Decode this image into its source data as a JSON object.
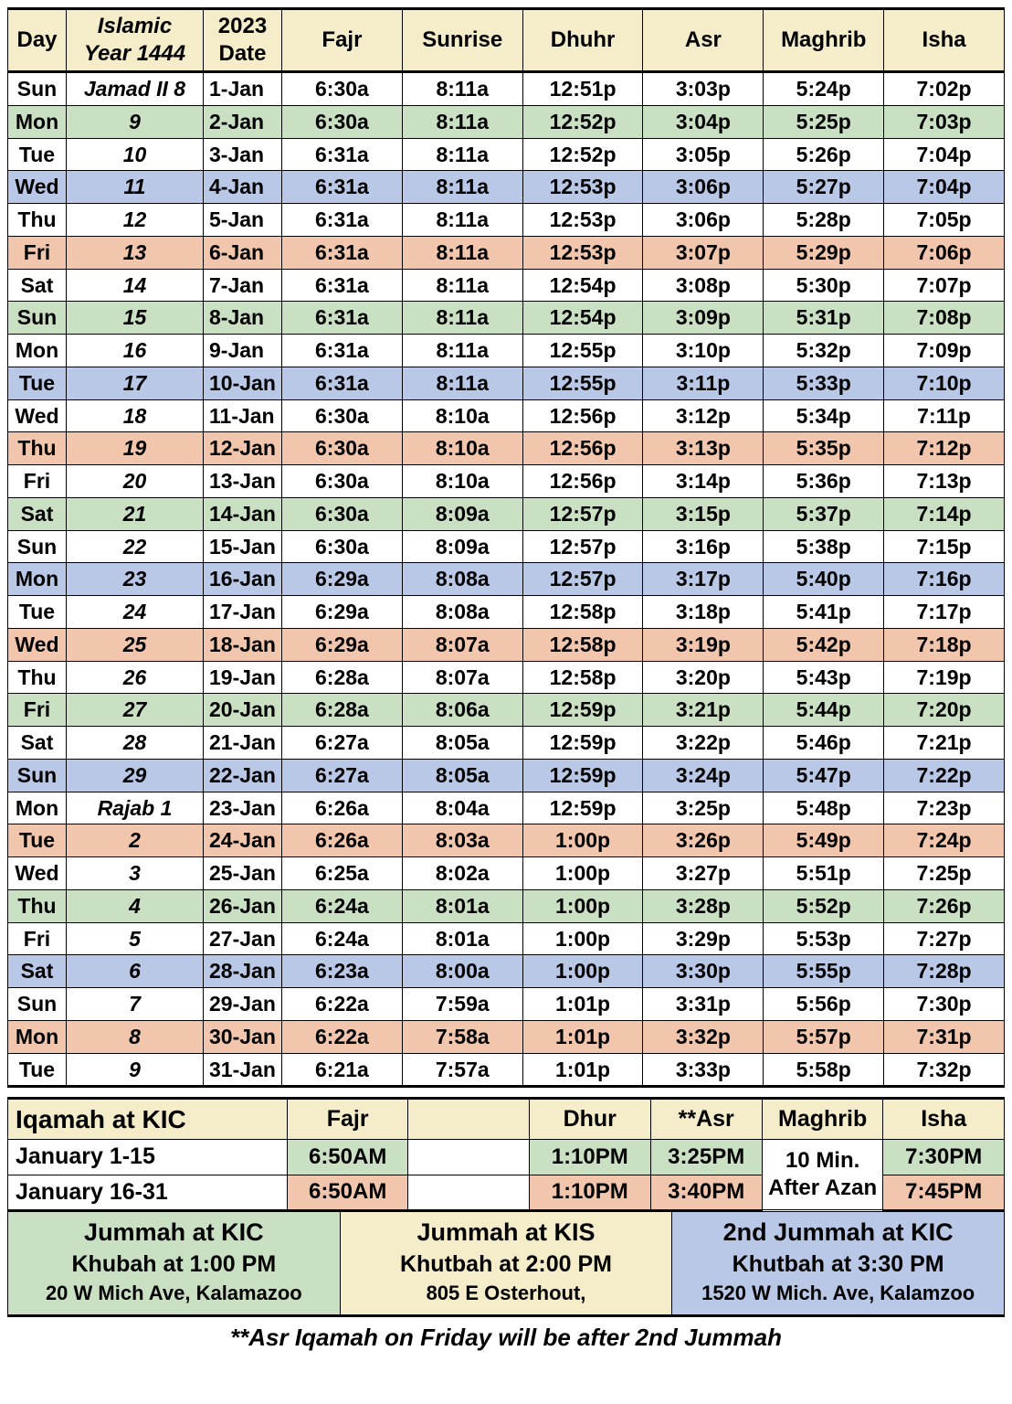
{
  "colors": {
    "header_bg": "#f5ecc9",
    "row_white": "#ffffff",
    "row_green": "#c9e0c3",
    "row_blue": "#b8c8e6",
    "row_peach": "#f2c6ad",
    "border": "#000000"
  },
  "header": {
    "day": "Day",
    "islamic_line1": "Islamic",
    "islamic_line2": "Year 1444",
    "date_line1": "2023",
    "date_line2": "Date",
    "fajr": "Fajr",
    "sunrise": "Sunrise",
    "dhuhr": "Dhuhr",
    "asr": "Asr",
    "maghrib": "Maghrib",
    "isha": "Isha"
  },
  "rows": [
    {
      "rc": "white",
      "day": "Sun",
      "islamic": "Jamad II  8",
      "date": "1-Jan",
      "fajr": "6:30a",
      "sunrise": "8:11a",
      "dhuhr": "12:51p",
      "asr": "3:03p",
      "maghrib": "5:24p",
      "isha": "7:02p"
    },
    {
      "rc": "green",
      "day": "Mon",
      "islamic": "9",
      "date": "2-Jan",
      "fajr": "6:30a",
      "sunrise": "8:11a",
      "dhuhr": "12:52p",
      "asr": "3:04p",
      "maghrib": "5:25p",
      "isha": "7:03p"
    },
    {
      "rc": "white",
      "day": "Tue",
      "islamic": "10",
      "date": "3-Jan",
      "fajr": "6:31a",
      "sunrise": "8:11a",
      "dhuhr": "12:52p",
      "asr": "3:05p",
      "maghrib": "5:26p",
      "isha": "7:04p"
    },
    {
      "rc": "blue",
      "day": "Wed",
      "islamic": "11",
      "date": "4-Jan",
      "fajr": "6:31a",
      "sunrise": "8:11a",
      "dhuhr": "12:53p",
      "asr": "3:06p",
      "maghrib": "5:27p",
      "isha": "7:04p"
    },
    {
      "rc": "white",
      "day": "Thu",
      "islamic": "12",
      "date": "5-Jan",
      "fajr": "6:31a",
      "sunrise": "8:11a",
      "dhuhr": "12:53p",
      "asr": "3:06p",
      "maghrib": "5:28p",
      "isha": "7:05p"
    },
    {
      "rc": "peach",
      "day": "Fri",
      "islamic": "13",
      "date": "6-Jan",
      "fajr": "6:31a",
      "sunrise": "8:11a",
      "dhuhr": "12:53p",
      "asr": "3:07p",
      "maghrib": "5:29p",
      "isha": "7:06p"
    },
    {
      "rc": "white",
      "day": "Sat",
      "islamic": "14",
      "date": "7-Jan",
      "fajr": "6:31a",
      "sunrise": "8:11a",
      "dhuhr": "12:54p",
      "asr": "3:08p",
      "maghrib": "5:30p",
      "isha": "7:07p"
    },
    {
      "rc": "green",
      "day": "Sun",
      "islamic": "15",
      "date": "8-Jan",
      "fajr": "6:31a",
      "sunrise": "8:11a",
      "dhuhr": "12:54p",
      "asr": "3:09p",
      "maghrib": "5:31p",
      "isha": "7:08p"
    },
    {
      "rc": "white",
      "day": "Mon",
      "islamic": "16",
      "date": "9-Jan",
      "fajr": "6:31a",
      "sunrise": "8:11a",
      "dhuhr": "12:55p",
      "asr": "3:10p",
      "maghrib": "5:32p",
      "isha": "7:09p"
    },
    {
      "rc": "blue",
      "day": "Tue",
      "islamic": "17",
      "date": "10-Jan",
      "fajr": "6:31a",
      "sunrise": "8:11a",
      "dhuhr": "12:55p",
      "asr": "3:11p",
      "maghrib": "5:33p",
      "isha": "7:10p"
    },
    {
      "rc": "white",
      "day": "Wed",
      "islamic": "18",
      "date": "11-Jan",
      "fajr": "6:30a",
      "sunrise": "8:10a",
      "dhuhr": "12:56p",
      "asr": "3:12p",
      "maghrib": "5:34p",
      "isha": "7:11p"
    },
    {
      "rc": "peach",
      "day": "Thu",
      "islamic": "19",
      "date": "12-Jan",
      "fajr": "6:30a",
      "sunrise": "8:10a",
      "dhuhr": "12:56p",
      "asr": "3:13p",
      "maghrib": "5:35p",
      "isha": "7:12p"
    },
    {
      "rc": "white",
      "day": "Fri",
      "islamic": "20",
      "date": "13-Jan",
      "fajr": "6:30a",
      "sunrise": "8:10a",
      "dhuhr": "12:56p",
      "asr": "3:14p",
      "maghrib": "5:36p",
      "isha": "7:13p"
    },
    {
      "rc": "green",
      "day": "Sat",
      "islamic": "21",
      "date": "14-Jan",
      "fajr": "6:30a",
      "sunrise": "8:09a",
      "dhuhr": "12:57p",
      "asr": "3:15p",
      "maghrib": "5:37p",
      "isha": "7:14p"
    },
    {
      "rc": "white",
      "day": "Sun",
      "islamic": "22",
      "date": "15-Jan",
      "fajr": "6:30a",
      "sunrise": "8:09a",
      "dhuhr": "12:57p",
      "asr": "3:16p",
      "maghrib": "5:38p",
      "isha": "7:15p"
    },
    {
      "rc": "blue",
      "day": "Mon",
      "islamic": "23",
      "date": "16-Jan",
      "fajr": "6:29a",
      "sunrise": "8:08a",
      "dhuhr": "12:57p",
      "asr": "3:17p",
      "maghrib": "5:40p",
      "isha": "7:16p"
    },
    {
      "rc": "white",
      "day": "Tue",
      "islamic": "24",
      "date": "17-Jan",
      "fajr": "6:29a",
      "sunrise": "8:08a",
      "dhuhr": "12:58p",
      "asr": "3:18p",
      "maghrib": "5:41p",
      "isha": "7:17p"
    },
    {
      "rc": "peach",
      "day": "Wed",
      "islamic": "25",
      "date": "18-Jan",
      "fajr": "6:29a",
      "sunrise": "8:07a",
      "dhuhr": "12:58p",
      "asr": "3:19p",
      "maghrib": "5:42p",
      "isha": "7:18p"
    },
    {
      "rc": "white",
      "day": "Thu",
      "islamic": "26",
      "date": "19-Jan",
      "fajr": "6:28a",
      "sunrise": "8:07a",
      "dhuhr": "12:58p",
      "asr": "3:20p",
      "maghrib": "5:43p",
      "isha": "7:19p"
    },
    {
      "rc": "green",
      "day": "Fri",
      "islamic": "27",
      "date": "20-Jan",
      "fajr": "6:28a",
      "sunrise": "8:06a",
      "dhuhr": "12:59p",
      "asr": "3:21p",
      "maghrib": "5:44p",
      "isha": "7:20p"
    },
    {
      "rc": "white",
      "day": "Sat",
      "islamic": "28",
      "date": "21-Jan",
      "fajr": "6:27a",
      "sunrise": "8:05a",
      "dhuhr": "12:59p",
      "asr": "3:22p",
      "maghrib": "5:46p",
      "isha": "7:21p"
    },
    {
      "rc": "blue",
      "day": "Sun",
      "islamic": "29",
      "date": "22-Jan",
      "fajr": "6:27a",
      "sunrise": "8:05a",
      "dhuhr": "12:59p",
      "asr": "3:24p",
      "maghrib": "5:47p",
      "isha": "7:22p"
    },
    {
      "rc": "white",
      "day": "Mon",
      "islamic": "Rajab 1",
      "date": "23-Jan",
      "fajr": "6:26a",
      "sunrise": "8:04a",
      "dhuhr": "12:59p",
      "asr": "3:25p",
      "maghrib": "5:48p",
      "isha": "7:23p"
    },
    {
      "rc": "peach",
      "day": "Tue",
      "islamic": "2",
      "date": "24-Jan",
      "fajr": "6:26a",
      "sunrise": "8:03a",
      "dhuhr": "1:00p",
      "asr": "3:26p",
      "maghrib": "5:49p",
      "isha": "7:24p"
    },
    {
      "rc": "white",
      "day": "Wed",
      "islamic": "3",
      "date": "25-Jan",
      "fajr": "6:25a",
      "sunrise": "8:02a",
      "dhuhr": "1:00p",
      "asr": "3:27p",
      "maghrib": "5:51p",
      "isha": "7:25p"
    },
    {
      "rc": "green",
      "day": "Thu",
      "islamic": "4",
      "date": "26-Jan",
      "fajr": "6:24a",
      "sunrise": "8:01a",
      "dhuhr": "1:00p",
      "asr": "3:28p",
      "maghrib": "5:52p",
      "isha": "7:26p"
    },
    {
      "rc": "white",
      "day": "Fri",
      "islamic": "5",
      "date": "27-Jan",
      "fajr": "6:24a",
      "sunrise": "8:01a",
      "dhuhr": "1:00p",
      "asr": "3:29p",
      "maghrib": "5:53p",
      "isha": "7:27p"
    },
    {
      "rc": "blue",
      "day": "Sat",
      "islamic": "6",
      "date": "28-Jan",
      "fajr": "6:23a",
      "sunrise": "8:00a",
      "dhuhr": "1:00p",
      "asr": "3:30p",
      "maghrib": "5:55p",
      "isha": "7:28p"
    },
    {
      "rc": "white",
      "day": "Sun",
      "islamic": "7",
      "date": "29-Jan",
      "fajr": "6:22a",
      "sunrise": "7:59a",
      "dhuhr": "1:01p",
      "asr": "3:31p",
      "maghrib": "5:56p",
      "isha": "7:30p"
    },
    {
      "rc": "peach",
      "day": "Mon",
      "islamic": "8",
      "date": "30-Jan",
      "fajr": "6:22a",
      "sunrise": "7:58a",
      "dhuhr": "1:01p",
      "asr": "3:32p",
      "maghrib": "5:57p",
      "isha": "7:31p"
    },
    {
      "rc": "white",
      "day": "Tue",
      "islamic": "9",
      "date": "31-Jan",
      "fajr": "6:21a",
      "sunrise": "7:57a",
      "dhuhr": "1:01p",
      "asr": "3:33p",
      "maghrib": "5:58p",
      "isha": "7:32p"
    }
  ],
  "iqamah": {
    "title": "Iqamah at KIC",
    "cols": {
      "fajr": "Fajr",
      "dhur": "Dhur",
      "asr": "**Asr",
      "maghrib": "Maghrib",
      "isha": "Isha"
    },
    "periods": [
      {
        "label": "January     1-15",
        "fajr": "6:50AM",
        "dhur": "1:10PM",
        "asr": "3:25PM",
        "maghrib": "10 Min.",
        "isha": "7:30PM"
      },
      {
        "label": "January    16-31",
        "fajr": "6:50AM",
        "dhur": "1:10PM",
        "asr": "3:40PM",
        "maghrib": "After Azan",
        "isha": "7:45PM"
      }
    ]
  },
  "jummah": [
    {
      "title": "Jummah at KIC",
      "sub": "Khubah at 1:00 PM",
      "addr": "20 W Mich Ave, Kalamazoo"
    },
    {
      "title": "Jummah at KIS",
      "sub": "Khutbah at 2:00 PM",
      "addr": "805 E Osterhout,"
    },
    {
      "title": "2nd Jummah at KIC",
      "sub": "Khutbah at 3:30 PM",
      "addr": "1520 W Mich. Ave, Kalamzoo"
    }
  ],
  "footnote": "**Asr Iqamah on Friday will be after 2nd Jummah"
}
